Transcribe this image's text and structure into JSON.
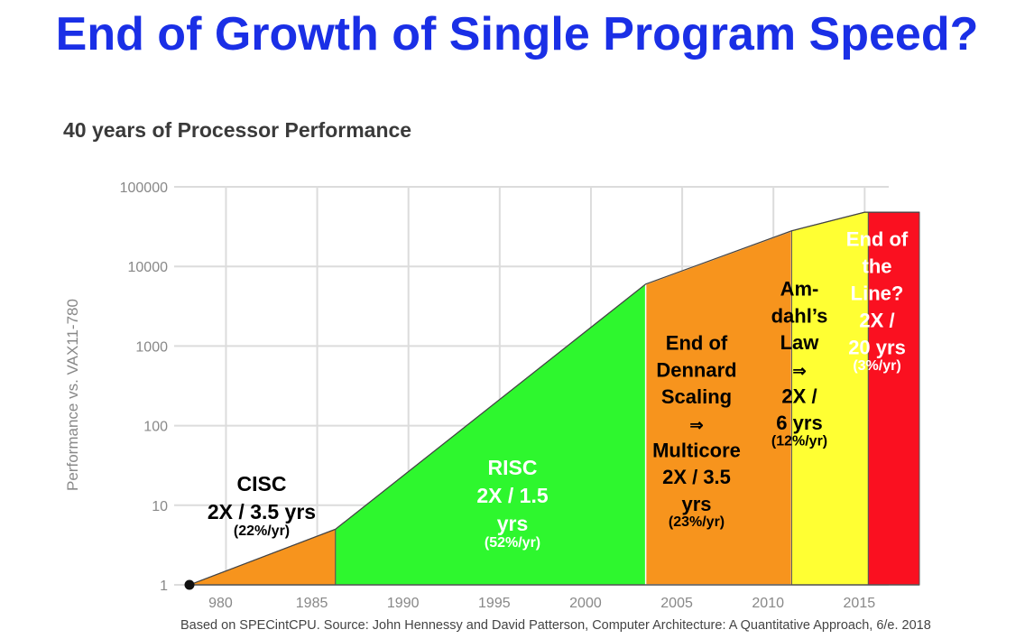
{
  "slide": {
    "title": "End of Growth of Single Program Speed?",
    "caption": "Based on SPECintCPU. Source: John Hennessy and David Patterson, Computer Architecture: A Quantitative Approach, 6/e. 2018"
  },
  "chart_data": {
    "type": "area",
    "title": "40 years of Processor Performance",
    "xlabel": "",
    "ylabel": "Performance vs. VAX11-780",
    "yscale": "log",
    "ylim": [
      1,
      100000
    ],
    "xlim": [
      1978,
      2018
    ],
    "x_ticks": [
      "980",
      "1985",
      "1990",
      "1995",
      "2000",
      "2005",
      "2010",
      "2015"
    ],
    "x_tick_values": [
      1980,
      1985,
      1990,
      1995,
      2000,
      2005,
      2010,
      2015
    ],
    "y_ticks": [
      "100000",
      "10000",
      "1000",
      "100",
      "10",
      "1"
    ],
    "y_tick_values": [
      100000,
      10000,
      1000,
      100,
      10,
      1
    ],
    "series": [
      {
        "name": "Performance",
        "x": [
          1978,
          1986,
          2003,
          2011,
          2015,
          2018
        ],
        "y": [
          1,
          5,
          6000,
          28000,
          48000,
          48000
        ]
      }
    ],
    "regions": [
      {
        "name": "CISC",
        "x_start": 1978,
        "x_end": 1986,
        "color": "#f7941d",
        "text_color": "#000000",
        "lines": [
          "CISC",
          "2X / 3.5 yrs"
        ],
        "rate": "(22%/yr)"
      },
      {
        "name": "RISC",
        "x_start": 1986,
        "x_end": 2003,
        "color": "#2ef72e",
        "text_color": "#ffffff",
        "lines": [
          "RISC",
          "2X / 1.5",
          "yrs"
        ],
        "rate": "(52%/yr)"
      },
      {
        "name": "End of Dennard Scaling",
        "x_start": 2003,
        "x_end": 2011,
        "color": "#f7941d",
        "text_color": "#000000",
        "lines": [
          "End of",
          "Dennard",
          "Scaling",
          "⇒",
          "Multicore",
          "2X / 3.5",
          "yrs"
        ],
        "rate": "(23%/yr)"
      },
      {
        "name": "Amdahl's Law",
        "x_start": 2011,
        "x_end": 2015.2,
        "color": "#ffff33",
        "text_color": "#000000",
        "lines": [
          "Am-",
          "dahl’s",
          "Law",
          "⇒",
          "2X /",
          "6 yrs"
        ],
        "rate": "(12%/yr)"
      },
      {
        "name": "End of the Line",
        "x_start": 2015.2,
        "x_end": 2018,
        "color": "#fa1020",
        "text_color": "#ffffff",
        "lines": [
          "End of",
          "the",
          "Line?",
          "2X /",
          "20 yrs"
        ],
        "rate": "(3%/yr)"
      }
    ]
  }
}
